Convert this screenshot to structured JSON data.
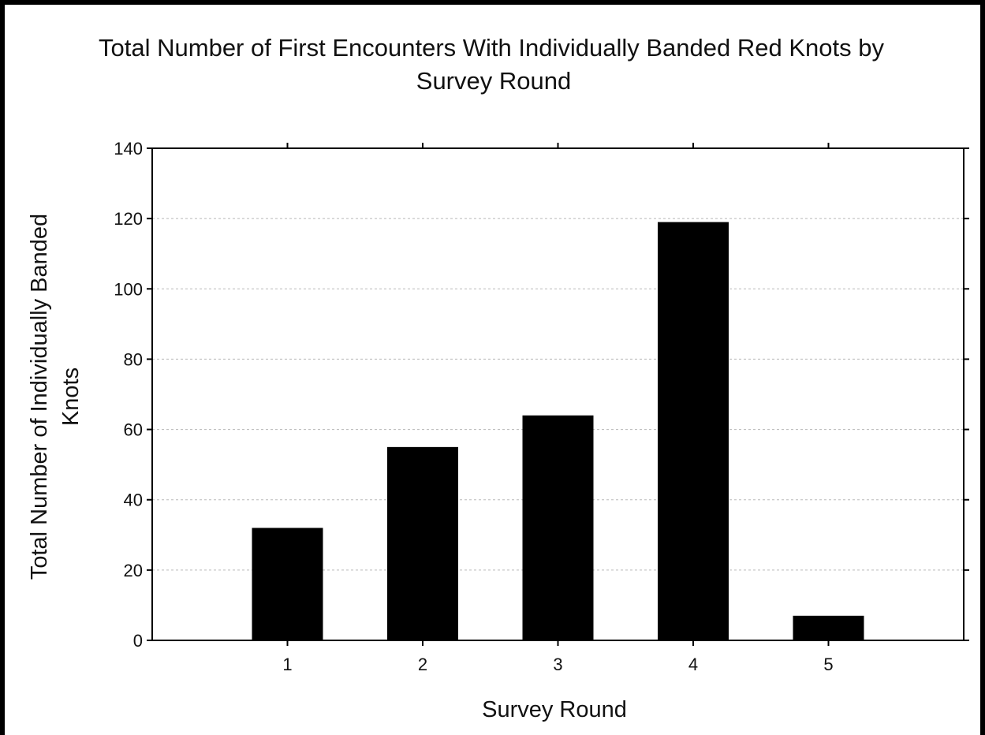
{
  "chart_data": {
    "type": "bar",
    "title_lines": [
      "Total Number of First Encounters With Individually Banded Red Knots by",
      "Survey Round"
    ],
    "xlabel": "Survey Round",
    "ylabel_lines": [
      "Total Number of Individually Banded",
      "Knots"
    ],
    "categories": [
      "1",
      "2",
      "3",
      "4",
      "5"
    ],
    "values": [
      32,
      55,
      64,
      119,
      7
    ],
    "ylim": [
      0,
      140
    ],
    "yticks": [
      "0",
      "20",
      "40",
      "60",
      "80",
      "100",
      "120",
      "140"
    ],
    "grid": true,
    "bar_color": "#000000",
    "legend": "none"
  }
}
